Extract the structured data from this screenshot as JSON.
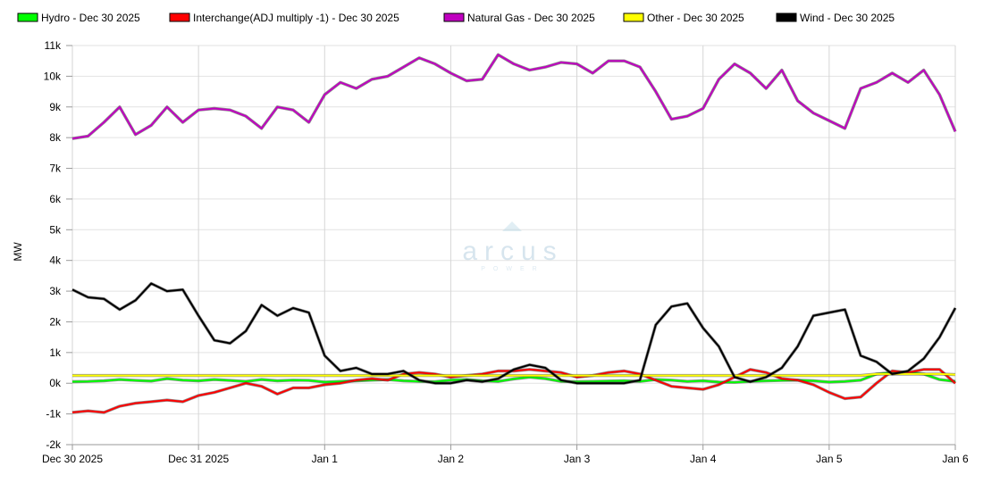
{
  "chart_data": {
    "type": "line",
    "ylabel": "MW",
    "ylim": [
      -2000,
      11000
    ],
    "yticks": [
      -2000,
      -1000,
      0,
      1000,
      2000,
      3000,
      4000,
      5000,
      6000,
      7000,
      8000,
      9000,
      10000,
      11000
    ],
    "ytick_labels": [
      "-2k",
      "-1k",
      "0k",
      "1k",
      "2k",
      "3k",
      "4k",
      "5k",
      "6k",
      "7k",
      "8k",
      "9k",
      "10k",
      "11k"
    ],
    "x_unit": "hours since Dec 30 2025 00:00",
    "xlim": [
      0,
      168
    ],
    "xticks": [
      0,
      24,
      48,
      72,
      96,
      120,
      144,
      168
    ],
    "xtick_labels": [
      "Dec 30 2025",
      "Dec 31 2025",
      "Jan 1",
      "Jan 2",
      "Jan 3",
      "Jan 4",
      "Jan 5",
      "Jan 6"
    ],
    "x_step_hours": 3,
    "grid": true,
    "legend_position": "top",
    "watermark": {
      "brand": "arcus",
      "sub": "POWER"
    },
    "series": [
      {
        "name": "Hydro - Dec 30 2025",
        "color": "#00ff00",
        "values": [
          50,
          60,
          80,
          120,
          90,
          70,
          150,
          100,
          80,
          120,
          90,
          60,
          120,
          80,
          100,
          90,
          40,
          60,
          80,
          100,
          120,
          80,
          60,
          50,
          100,
          120,
          80,
          60,
          140,
          200,
          150,
          60,
          50,
          60,
          70,
          80,
          60,
          120,
          100,
          60,
          80,
          40,
          30,
          60,
          80,
          90,
          100,
          80,
          40,
          60,
          100,
          300,
          350,
          350,
          300,
          120,
          60
        ]
      },
      {
        "name": "Interchange(ADJ multiply -1) - Dec 30 2025",
        "color": "#ff0000",
        "values": [
          -950,
          -900,
          -950,
          -750,
          -650,
          -600,
          -550,
          -600,
          -400,
          -300,
          -150,
          0,
          -100,
          -350,
          -150,
          -150,
          -50,
          0,
          100,
          150,
          100,
          300,
          350,
          300,
          200,
          250,
          300,
          400,
          400,
          450,
          400,
          350,
          200,
          250,
          350,
          400,
          300,
          100,
          -100,
          -150,
          -200,
          -50,
          200,
          450,
          350,
          150,
          100,
          -50,
          -300,
          -500,
          -450,
          0,
          400,
          350,
          450,
          450,
          0
        ]
      },
      {
        "name": "Natural Gas - Dec 30 2025",
        "color": "#c000c0",
        "values": [
          7970,
          8050,
          8500,
          9000,
          8100,
          8400,
          9000,
          8500,
          8900,
          8950,
          8900,
          8700,
          8300,
          9000,
          8900,
          8500,
          9400,
          9800,
          9600,
          9900,
          10000,
          10300,
          10600,
          10400,
          10100,
          9850,
          9900,
          10700,
          10400,
          10200,
          10300,
          10450,
          10400,
          10100,
          10500,
          10500,
          10300,
          9500,
          8600,
          8700,
          8950,
          9900,
          10400,
          10100,
          9600,
          10200,
          9200,
          8800,
          8550,
          8300,
          9600,
          9800,
          10100,
          9800,
          10200,
          9400,
          8200
        ]
      },
      {
        "name": "Other - Dec 30 2025",
        "color": "#ffff00",
        "values": [
          250,
          250,
          250,
          250,
          250,
          250,
          250,
          250,
          250,
          250,
          250,
          250,
          250,
          250,
          250,
          250,
          250,
          250,
          250,
          250,
          250,
          250,
          250,
          250,
          250,
          250,
          250,
          250,
          250,
          250,
          250,
          250,
          250,
          250,
          250,
          250,
          250,
          250,
          250,
          250,
          250,
          250,
          250,
          250,
          250,
          250,
          250,
          250,
          250,
          250,
          250,
          300,
          300,
          300,
          300,
          300,
          280
        ]
      },
      {
        "name": "Wind - Dec 30 2025",
        "color": "#000000",
        "values": [
          3050,
          2800,
          2750,
          2400,
          2700,
          3250,
          3000,
          3050,
          2200,
          1400,
          1300,
          1700,
          2550,
          2200,
          2450,
          2300,
          900,
          400,
          500,
          300,
          300,
          400,
          100,
          0,
          0,
          100,
          50,
          150,
          450,
          600,
          500,
          100,
          0,
          0,
          0,
          0,
          100,
          1900,
          2500,
          2600,
          1800,
          1200,
          200,
          50,
          200,
          500,
          1200,
          2200,
          2300,
          2400,
          900,
          700,
          300,
          400,
          800,
          1500,
          2450
        ]
      }
    ]
  }
}
